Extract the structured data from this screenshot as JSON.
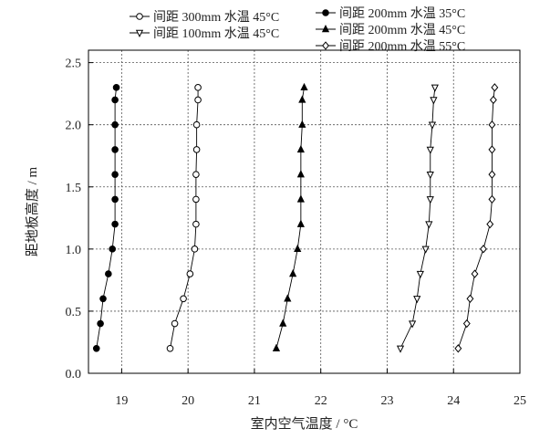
{
  "chart_data": {
    "type": "scatter",
    "title": "",
    "xlabel": "室内空气温度 / °C",
    "ylabel": "距地板高度 / m",
    "xlim": [
      18.5,
      25
    ],
    "ylim": [
      0,
      2.6
    ],
    "xticks": [
      19,
      20,
      21,
      22,
      23,
      24,
      25
    ],
    "yticks": [
      0.0,
      0.5,
      1.0,
      1.5,
      2.0,
      2.5
    ],
    "ytick_labels": [
      "0.0",
      "0.5",
      "1.0",
      "1.5",
      "2.0",
      "2.5"
    ],
    "grid": true,
    "legend_position": "top",
    "series": [
      {
        "name": "间距 200mm 水温 35°C",
        "marker": "circle-filled",
        "x": [
          18.62,
          18.68,
          18.72,
          18.8,
          18.86,
          18.9,
          18.9,
          18.9,
          18.9,
          18.9,
          18.9,
          18.92
        ],
        "y": [
          0.2,
          0.4,
          0.6,
          0.8,
          1.0,
          1.2,
          1.4,
          1.6,
          1.8,
          2.0,
          2.2,
          2.3
        ]
      },
      {
        "name": "间距 300mm 水温 45°C",
        "marker": "circle-open",
        "x": [
          19.73,
          19.8,
          19.93,
          20.03,
          20.1,
          20.12,
          20.12,
          20.12,
          20.13,
          20.13,
          20.15,
          20.15
        ],
        "y": [
          0.2,
          0.4,
          0.6,
          0.8,
          1.0,
          1.2,
          1.4,
          1.6,
          1.8,
          2.0,
          2.2,
          2.3
        ]
      },
      {
        "name": "间距 200mm 水温 45°C",
        "marker": "triangle-filled",
        "x": [
          21.33,
          21.43,
          21.5,
          21.58,
          21.65,
          21.7,
          21.7,
          21.7,
          21.7,
          21.72,
          21.72,
          21.75
        ],
        "y": [
          0.2,
          0.4,
          0.6,
          0.8,
          1.0,
          1.2,
          1.4,
          1.6,
          1.8,
          2.0,
          2.2,
          2.3
        ]
      },
      {
        "name": "间距 100mm 水温 45°C",
        "marker": "triangle-down-open",
        "x": [
          23.2,
          23.38,
          23.45,
          23.5,
          23.58,
          23.63,
          23.65,
          23.65,
          23.65,
          23.68,
          23.7,
          23.72
        ],
        "y": [
          0.2,
          0.4,
          0.6,
          0.8,
          1.0,
          1.2,
          1.4,
          1.6,
          1.8,
          2.0,
          2.2,
          2.3
        ]
      },
      {
        "name": "间距 200mm 水温 55°C",
        "marker": "diamond-open",
        "x": [
          24.07,
          24.2,
          24.25,
          24.32,
          24.45,
          24.55,
          24.58,
          24.58,
          24.58,
          24.58,
          24.6,
          24.62
        ],
        "y": [
          0.2,
          0.4,
          0.6,
          0.8,
          1.0,
          1.2,
          1.4,
          1.6,
          1.8,
          2.0,
          2.2,
          2.3
        ]
      }
    ],
    "legend_order": [
      "间距 300mm 水温 45°C",
      "间距 200mm 水温 35°C",
      "间距 100mm 水温 45°C",
      "间距 200mm 水温 45°C",
      "间距 200mm 水温 55°C"
    ]
  }
}
